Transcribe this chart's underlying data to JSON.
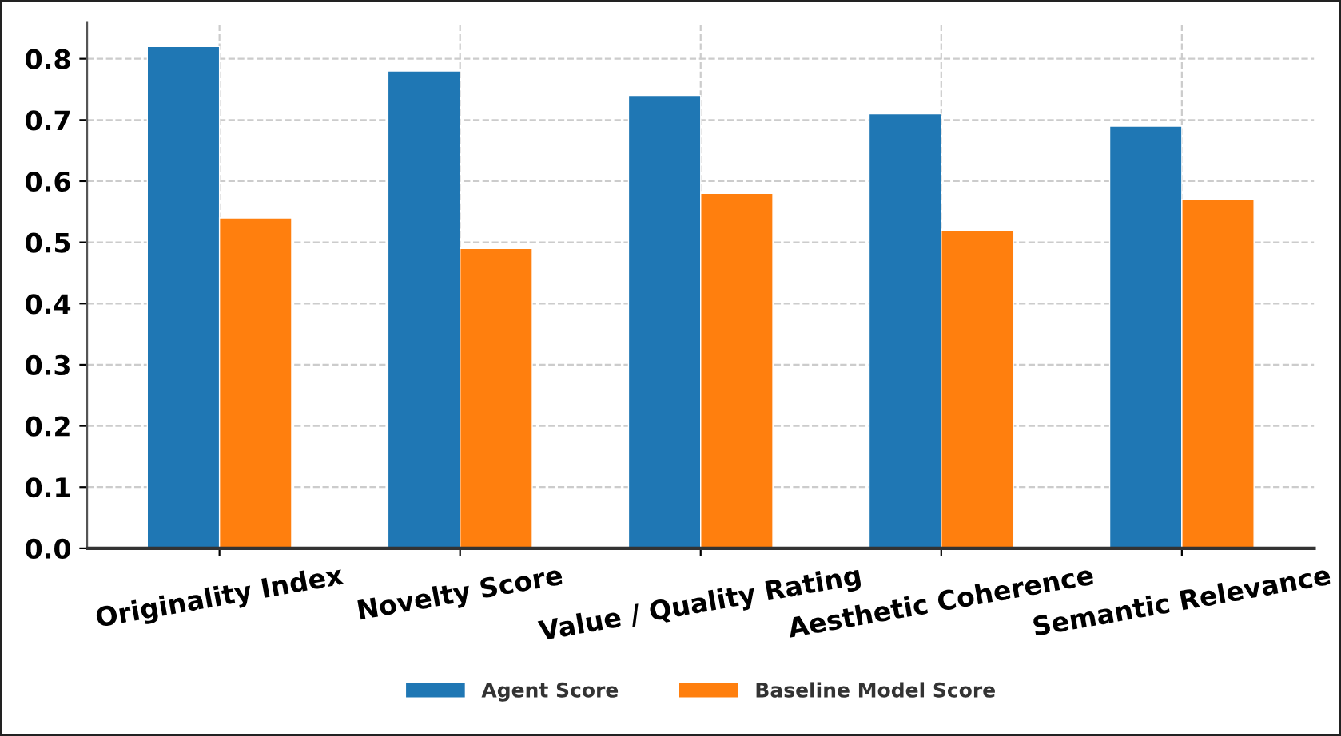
{
  "chart_data": {
    "type": "bar",
    "categories": [
      "Originality Index",
      "Novelty Score",
      "Value / Quality Rating",
      "Aesthetic Coherence",
      "Semantic Relevance"
    ],
    "series": [
      {
        "name": "Agent Score",
        "color": "#1f77b4",
        "values": [
          0.82,
          0.78,
          0.74,
          0.71,
          0.69
        ]
      },
      {
        "name": "Baseline Model Score",
        "color": "#ff7f0e",
        "values": [
          0.54,
          0.49,
          0.58,
          0.52,
          0.57
        ]
      }
    ],
    "ylim": [
      0,
      0.86
    ],
    "yticks": [
      {
        "value": 0,
        "label": "0.0"
      },
      0.1,
      0.2,
      0.3,
      0.4,
      0.5,
      0.6,
      0.7,
      0.8
    ],
    "grid": true,
    "legend": "bottom"
  }
}
